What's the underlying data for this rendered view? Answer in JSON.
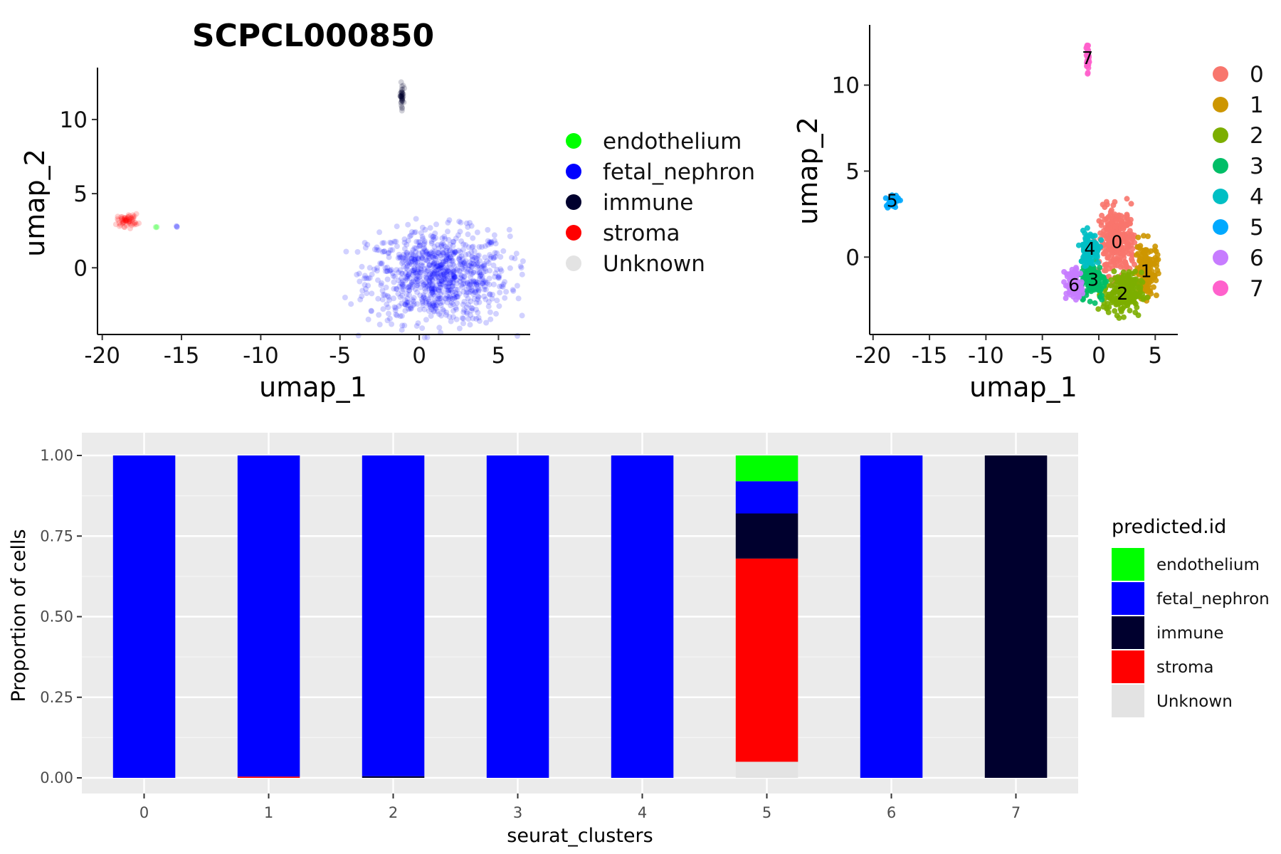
{
  "chart_data": [
    {
      "type": "scatter",
      "title": "SCPCL000850",
      "xlabel": "umap_1",
      "ylabel": "umap_2",
      "xlim": [
        -20.3,
        7
      ],
      "ylim": [
        -4.5,
        13.5
      ],
      "xticks": [
        -20,
        -15,
        -10,
        -5,
        0,
        5
      ],
      "yticks": [
        0,
        5,
        10
      ],
      "legend_position": "right",
      "legend": [
        {
          "label": "endothelium",
          "color": "#00ff00"
        },
        {
          "label": "fetal_nephron",
          "color": "#0000ff"
        },
        {
          "label": "immune",
          "color": "#00002e"
        },
        {
          "label": "stroma",
          "color": "#ff0000"
        },
        {
          "label": "Unknown",
          "color": "#e3e3e3"
        }
      ],
      "groups": [
        {
          "label": "fetal_nephron",
          "center": [
            1.2,
            -0.6
          ],
          "spread": [
            3.7,
            2.6
          ],
          "n": 900
        },
        {
          "label": "stroma",
          "center": [
            -18.4,
            3.2
          ],
          "spread": [
            0.55,
            0.35
          ],
          "n": 60
        },
        {
          "label": "endothelium",
          "center": [
            -16.6,
            2.7
          ],
          "spread": [
            0.1,
            0.1
          ],
          "n": 3
        },
        {
          "label": "fetal_nephron",
          "center": [
            -15.3,
            2.8
          ],
          "spread": [
            0.05,
            0.05
          ],
          "n": 3
        },
        {
          "label": "immune",
          "center": [
            -1.1,
            11.6
          ],
          "spread": [
            0.1,
            0.7
          ],
          "n": 40
        }
      ]
    },
    {
      "type": "scatter",
      "title": "",
      "xlabel": "umap_1",
      "ylabel": "umap_2",
      "xlim": [
        -20.3,
        7
      ],
      "ylim": [
        -4.5,
        13.5
      ],
      "xticks": [
        -20,
        -15,
        -10,
        -5,
        0,
        5
      ],
      "yticks": [
        0,
        5,
        10
      ],
      "legend_position": "right",
      "legend": [
        {
          "label": "0",
          "color": "#f8766d"
        },
        {
          "label": "1",
          "color": "#cd9600"
        },
        {
          "label": "2",
          "color": "#7cae00"
        },
        {
          "label": "3",
          "color": "#00be67"
        },
        {
          "label": "4",
          "color": "#00bfc4"
        },
        {
          "label": "5",
          "color": "#00a9ff"
        },
        {
          "label": "6",
          "color": "#c77cff"
        },
        {
          "label": "7",
          "color": "#ff61cc"
        }
      ],
      "clusters": [
        {
          "label": "0",
          "center": [
            1.6,
            0.9
          ],
          "spread": [
            1.3,
            1.6
          ],
          "n": 300
        },
        {
          "label": "1",
          "center": [
            4.2,
            -0.8
          ],
          "spread": [
            0.8,
            1.3
          ],
          "n": 160
        },
        {
          "label": "2",
          "center": [
            2.1,
            -2.1
          ],
          "spread": [
            1.4,
            1.0
          ],
          "n": 200
        },
        {
          "label": "3",
          "center": [
            -0.5,
            -1.3
          ],
          "spread": [
            0.9,
            0.9
          ],
          "n": 140
        },
        {
          "label": "4",
          "center": [
            -0.8,
            0.5
          ],
          "spread": [
            0.7,
            0.8
          ],
          "n": 130
        },
        {
          "label": "5",
          "center": [
            -18.3,
            3.3
          ],
          "spread": [
            0.45,
            0.3
          ],
          "n": 50
        },
        {
          "label": "6",
          "center": [
            -2.2,
            -1.6
          ],
          "spread": [
            0.6,
            0.8
          ],
          "n": 90
        },
        {
          "label": "7",
          "center": [
            -1.0,
            11.6
          ],
          "spread": [
            0.1,
            0.7
          ],
          "n": 35
        }
      ]
    },
    {
      "type": "bar",
      "stacked": true,
      "xlabel": "seurat_clusters",
      "ylabel": "Proportion of cells",
      "ylim": [
        0,
        1.05
      ],
      "yticks": [
        "0.00",
        "0.25",
        "0.50",
        "0.75",
        "1.00"
      ],
      "categories": [
        "0",
        "1",
        "2",
        "3",
        "4",
        "5",
        "6",
        "7"
      ],
      "legend_title": "predicted.id",
      "legend_position": "right",
      "series": [
        {
          "name": "Unknown",
          "color": "#e3e3e3",
          "values": [
            0,
            0,
            0,
            0,
            0,
            0.05,
            0,
            0
          ]
        },
        {
          "name": "stroma",
          "color": "#ff0000",
          "values": [
            0,
            0.004,
            0,
            0,
            0,
            0.63,
            0,
            0
          ]
        },
        {
          "name": "immune",
          "color": "#00002e",
          "values": [
            0,
            0,
            0.005,
            0,
            0,
            0.14,
            0,
            1.0
          ]
        },
        {
          "name": "fetal_nephron",
          "color": "#0000ff",
          "values": [
            1.0,
            0.996,
            0.995,
            1.0,
            1.0,
            0.1,
            1.0,
            0
          ]
        },
        {
          "name": "endothelium",
          "color": "#00ff00",
          "values": [
            0,
            0,
            0,
            0,
            0,
            0.08,
            0,
            0
          ]
        }
      ],
      "legend_order": [
        "endothelium",
        "fetal_nephron",
        "immune",
        "stroma",
        "Unknown"
      ]
    }
  ]
}
